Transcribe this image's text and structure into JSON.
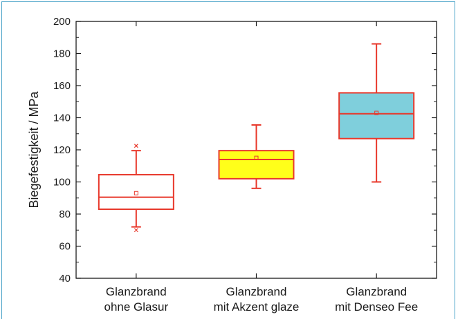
{
  "chart_data": {
    "type": "box",
    "title": "",
    "ylabel": "Biegefestigkeit / MPa",
    "xlabel": "",
    "ylim": [
      40,
      200
    ],
    "yticks": [
      40,
      60,
      80,
      100,
      120,
      140,
      160,
      180,
      200
    ],
    "grid": false,
    "categories": [
      [
        "Glanzbrand",
        "ohne Glasur"
      ],
      [
        "Glanzbrand",
        "mit Akzent glaze"
      ],
      [
        "Glanzbrand",
        "mit Denseo Fee"
      ]
    ],
    "boxes": [
      {
        "whisker_low": 72,
        "q1": 83,
        "median": 90.5,
        "q3": 104.5,
        "whisker_high": 119.5,
        "mean": 93,
        "outliers": [
          70,
          122.5
        ],
        "fill": "#ffffff"
      },
      {
        "whisker_low": 96,
        "q1": 102,
        "median": 114,
        "q3": 119.5,
        "whisker_high": 135.5,
        "mean": 115,
        "outliers": [],
        "fill": "#ffff1a"
      },
      {
        "whisker_low": 100,
        "q1": 127,
        "median": 142.5,
        "q3": 155.5,
        "whisker_high": 186,
        "mean": 143,
        "outliers": [],
        "fill": "#7fcfdc"
      }
    ],
    "stroke_color": "#e8372a"
  }
}
